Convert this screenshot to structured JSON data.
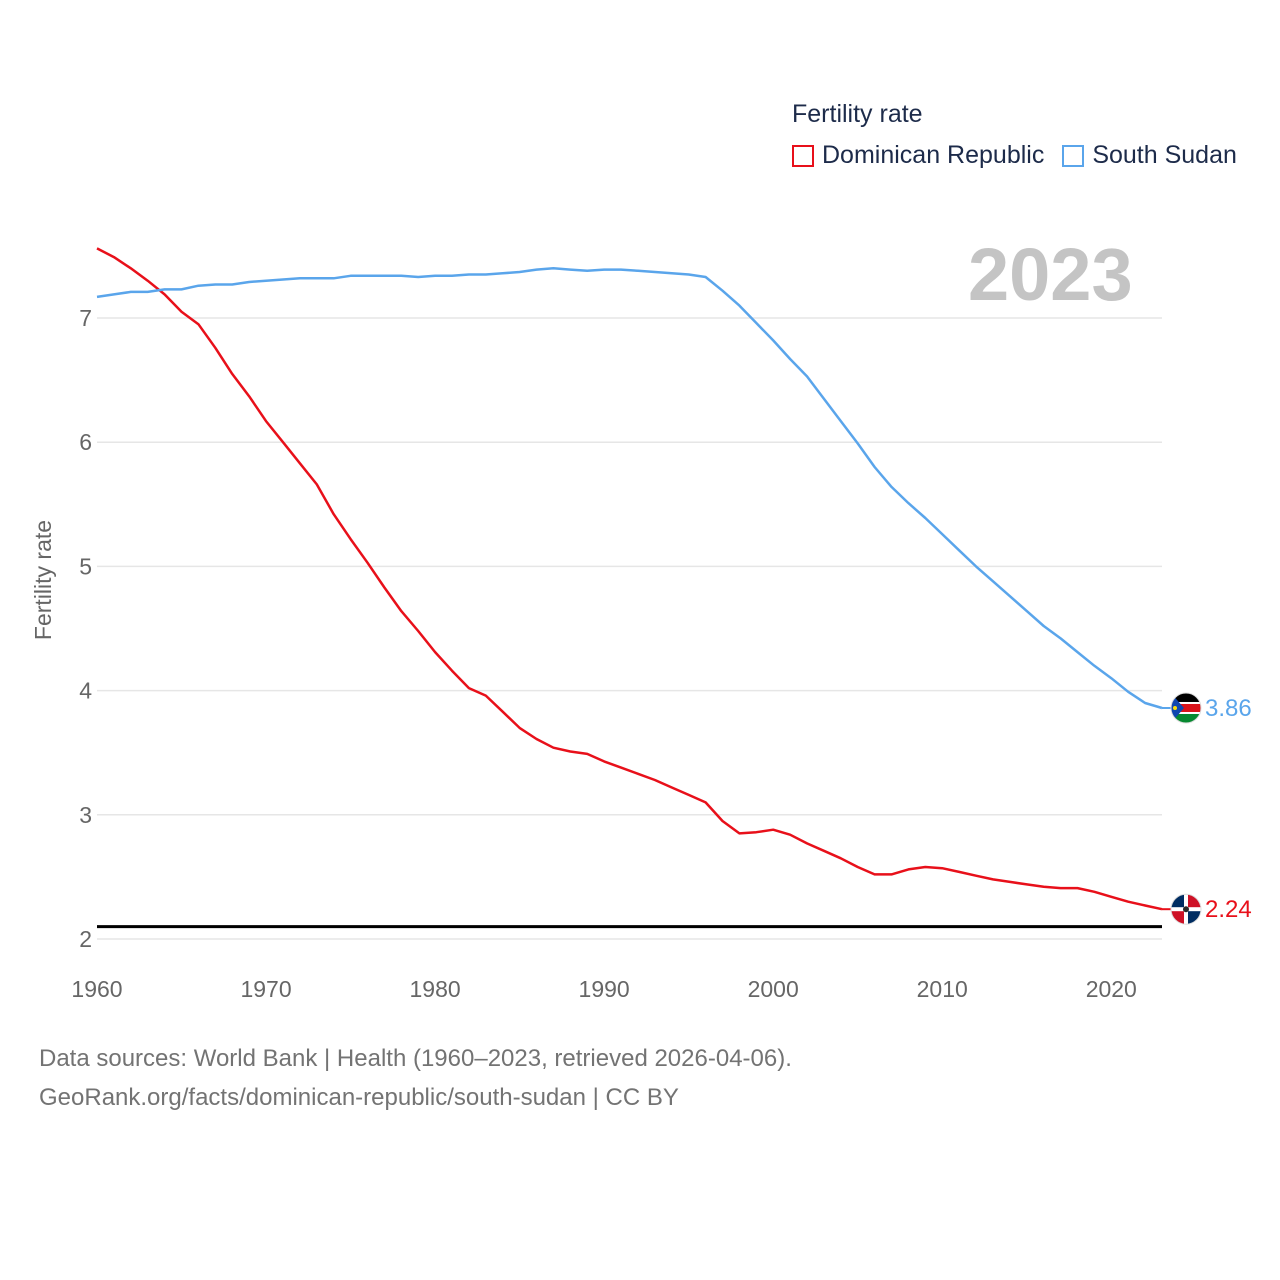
{
  "legend": {
    "title": "Fertility rate",
    "items": [
      {
        "label": "Dominican Republic",
        "color": "#e8101a"
      },
      {
        "label": "South Sudan",
        "color": "#5aa5eb"
      }
    ]
  },
  "year_label": "2023",
  "source": {
    "line1": "Data sources: World Bank | Health (1960–2023, retrieved 2026-04-06).",
    "line2": "GeoRank.org/facts/dominican-republic/south-sudan | CC BY"
  },
  "chart_data": {
    "type": "line",
    "ylabel": "Fertility rate",
    "xlabel": "",
    "xlim": [
      1960,
      2023
    ],
    "ylim": [
      2,
      7.5
    ],
    "x_ticks": [
      "1960",
      "1970",
      "1980",
      "1990",
      "2000",
      "2010",
      "2020"
    ],
    "y_ticks": [
      "2",
      "3",
      "4",
      "5",
      "6",
      "7"
    ],
    "reference_line": {
      "y": 2.1,
      "color": "#000000"
    },
    "series": [
      {
        "name": "Dominican Republic",
        "color": "#e8101a",
        "end_label": "2.24",
        "flag": "dominican-republic-flag-icon",
        "x": [
          1960,
          1961,
          1962,
          1963,
          1964,
          1965,
          1966,
          1967,
          1968,
          1969,
          1970,
          1971,
          1972,
          1973,
          1974,
          1975,
          1976,
          1977,
          1978,
          1979,
          1980,
          1981,
          1982,
          1983,
          1984,
          1985,
          1986,
          1987,
          1988,
          1989,
          1990,
          1991,
          1992,
          1993,
          1994,
          1995,
          1996,
          1997,
          1998,
          1999,
          2000,
          2001,
          2002,
          2003,
          2004,
          2005,
          2006,
          2007,
          2008,
          2009,
          2010,
          2011,
          2012,
          2013,
          2014,
          2015,
          2016,
          2017,
          2018,
          2019,
          2020,
          2021,
          2022,
          2023
        ],
        "values": [
          7.56,
          7.49,
          7.4,
          7.3,
          7.19,
          7.05,
          6.95,
          6.76,
          6.55,
          6.37,
          6.17,
          6.0,
          5.83,
          5.66,
          5.42,
          5.22,
          5.03,
          4.83,
          4.64,
          4.48,
          4.31,
          4.16,
          4.02,
          3.96,
          3.83,
          3.7,
          3.61,
          3.54,
          3.51,
          3.49,
          3.43,
          3.38,
          3.33,
          3.28,
          3.22,
          3.16,
          3.1,
          2.95,
          2.85,
          2.86,
          2.88,
          2.84,
          2.77,
          2.71,
          2.65,
          2.58,
          2.52,
          2.52,
          2.56,
          2.58,
          2.57,
          2.54,
          2.51,
          2.48,
          2.46,
          2.44,
          2.42,
          2.41,
          2.41,
          2.38,
          2.34,
          2.3,
          2.27,
          2.24
        ]
      },
      {
        "name": "South Sudan",
        "color": "#5aa5eb",
        "end_label": "3.86",
        "flag": "south-sudan-flag-icon",
        "x": [
          1960,
          1961,
          1962,
          1963,
          1964,
          1965,
          1966,
          1967,
          1968,
          1969,
          1970,
          1971,
          1972,
          1973,
          1974,
          1975,
          1976,
          1977,
          1978,
          1979,
          1980,
          1981,
          1982,
          1983,
          1984,
          1985,
          1986,
          1987,
          1988,
          1989,
          1990,
          1991,
          1992,
          1993,
          1994,
          1995,
          1996,
          1997,
          1998,
          1999,
          2000,
          2001,
          2002,
          2003,
          2004,
          2005,
          2006,
          2007,
          2008,
          2009,
          2010,
          2011,
          2012,
          2013,
          2014,
          2015,
          2016,
          2017,
          2018,
          2019,
          2020,
          2021,
          2022,
          2023
        ],
        "values": [
          7.17,
          7.19,
          7.21,
          7.21,
          7.23,
          7.23,
          7.26,
          7.27,
          7.27,
          7.29,
          7.3,
          7.31,
          7.32,
          7.32,
          7.32,
          7.34,
          7.34,
          7.34,
          7.34,
          7.33,
          7.34,
          7.34,
          7.35,
          7.35,
          7.36,
          7.37,
          7.39,
          7.4,
          7.39,
          7.38,
          7.39,
          7.39,
          7.38,
          7.37,
          7.36,
          7.35,
          7.33,
          7.22,
          7.1,
          6.96,
          6.82,
          6.67,
          6.53,
          6.35,
          6.17,
          5.99,
          5.8,
          5.64,
          5.51,
          5.39,
          5.26,
          5.13,
          5.0,
          4.88,
          4.76,
          4.64,
          4.52,
          4.42,
          4.31,
          4.2,
          4.1,
          3.99,
          3.9,
          3.86
        ]
      }
    ]
  }
}
